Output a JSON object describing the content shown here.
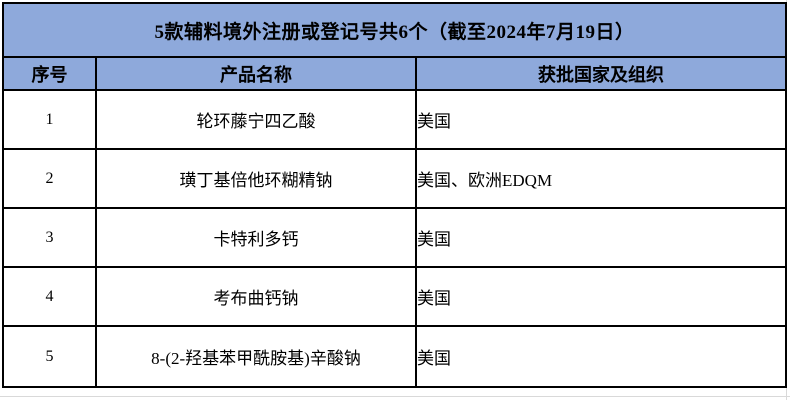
{
  "colors": {
    "header_background": "#8EA9DB",
    "table_border": "#000000",
    "sheet_gridline": "#d9d9d9",
    "text": "#000000",
    "page_background": "#ffffff"
  },
  "table": {
    "title": "5款辅料境外注册或登记号共6个（截至2024年7月19日）",
    "columns": [
      "序号",
      "产品名称",
      "获批国家及组织"
    ],
    "rows": [
      {
        "no": "1",
        "name": "轮环藤宁四乙酸",
        "countries": "美国"
      },
      {
        "no": "2",
        "name": "璜丁基倍他环糊精钠",
        "countries": "美国、欧洲EDQM"
      },
      {
        "no": "3",
        "name": "卡特利多钙",
        "countries": "美国"
      },
      {
        "no": "4",
        "name": "考布曲钙钠",
        "countries": "美国"
      },
      {
        "no": "5",
        "name": "8-(2-羟基苯甲酰胺基)辛酸钠",
        "countries": "美国"
      }
    ]
  }
}
